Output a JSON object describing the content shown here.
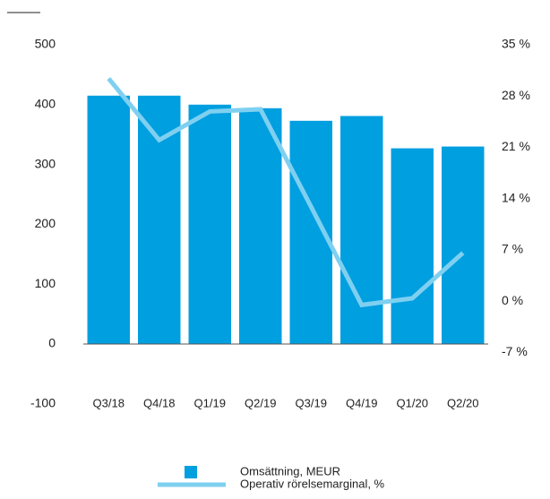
{
  "chart_data": {
    "type": "bar",
    "categories": [
      "Q3/18",
      "Q4/18",
      "Q1/19",
      "Q2/19",
      "Q3/19",
      "Q4/19",
      "Q1/20",
      "Q2/20"
    ],
    "series": [
      {
        "name": "Omsättning, MEUR",
        "type": "bar",
        "color": "#009fe0",
        "values": [
          415,
          415,
          400,
          394,
          373,
          381,
          327,
          330
        ]
      },
      {
        "name": "Operativ rörelsemarginal, %",
        "type": "line",
        "axis": "y2",
        "color": "#7fd0f0",
        "values": [
          30.4,
          22.0,
          25.9,
          26.2,
          12.9,
          -0.5,
          0.4,
          6.6
        ]
      }
    ],
    "ylim": [
      -100,
      500
    ],
    "yticks": [
      -100,
      0,
      100,
      200,
      300,
      400,
      500
    ],
    "y2lim": [
      -14,
      35
    ],
    "y2ticks": [
      {
        "value": -7,
        "label": "-7 %"
      },
      {
        "value": 0,
        "label": "0 %"
      },
      {
        "value": 7,
        "label": "7 %"
      },
      {
        "value": 14,
        "label": "14 %"
      },
      {
        "value": 21,
        "label": "21 %"
      },
      {
        "value": 28,
        "label": "28 %"
      },
      {
        "value": 35,
        "label": "35 %"
      }
    ],
    "legend": "bottom"
  }
}
